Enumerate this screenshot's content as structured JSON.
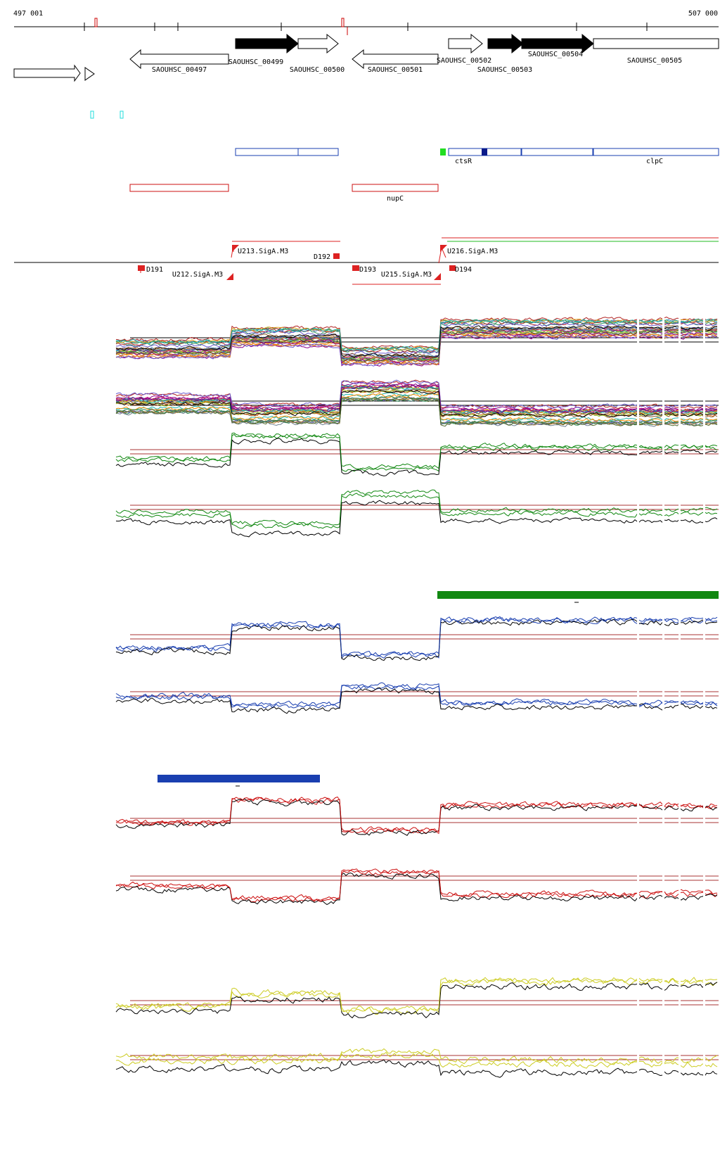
{
  "coordinates": {
    "start_label": "497 001",
    "end_label": "507 000"
  },
  "genes": [
    {
      "label": "SAOUHSC_00497",
      "dir": "left",
      "filled": false
    },
    {
      "label": "SAOUHSC_00499",
      "dir": "right",
      "filled": true
    },
    {
      "label": "SAOUHSC_00500",
      "dir": "right",
      "filled": false
    },
    {
      "label": "SAOUHSC_00501",
      "dir": "left",
      "filled": false
    },
    {
      "label": "SAOUHSC_00502",
      "dir": "right",
      "filled": false
    },
    {
      "label": "SAOUHSC_00503",
      "dir": "right",
      "filled": true
    },
    {
      "label": "SAOUHSC_00504",
      "dir": "right",
      "filled": true
    },
    {
      "label": "SAOUHSC_00505",
      "dir": "right",
      "filled": false
    }
  ],
  "operon_labels": {
    "blue": [
      "ctsR",
      "clpC"
    ],
    "red": [
      "nupC"
    ]
  },
  "segments": {
    "up": [
      {
        "label": "U212.SigA.M3"
      },
      {
        "label": "U213.SigA.M3"
      },
      {
        "label": "U215.SigA.M3"
      },
      {
        "label": "U216.SigA.M3"
      }
    ],
    "down": [
      {
        "label": "D191"
      },
      {
        "label": "D192"
      },
      {
        "label": "D193"
      },
      {
        "label": "D194"
      }
    ]
  },
  "series_colors": {
    "black": "#000000",
    "green": "#118811",
    "blue": "#1a3fb0",
    "red": "#cc1111",
    "yellow": "#cccc22",
    "ref": "#aa3333"
  }
}
